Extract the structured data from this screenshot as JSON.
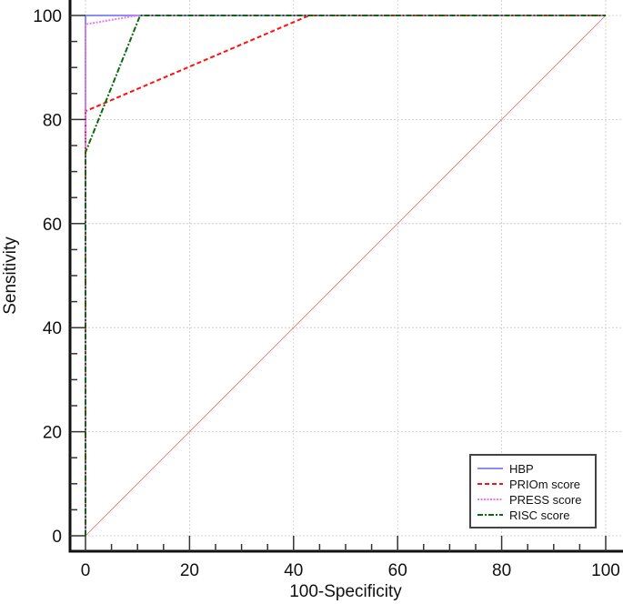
{
  "chart_data": {
    "type": "line",
    "title": "",
    "xlabel": "100-Specificity",
    "ylabel": "Sensitivity",
    "xlim": [
      0,
      100
    ],
    "ylim": [
      0,
      100
    ],
    "xticks": [
      0,
      20,
      40,
      60,
      80,
      100
    ],
    "yticks": [
      0,
      20,
      40,
      60,
      80,
      100
    ],
    "grid": true,
    "legend_position": "lower right",
    "series": [
      {
        "name": "HBP",
        "color": "#8c8cf5",
        "dash": "solid",
        "x": [
          0,
          0,
          100
        ],
        "y": [
          0,
          100,
          100
        ]
      },
      {
        "name": "PRIOm score",
        "color": "#ff1010",
        "dash": "dashed",
        "x": [
          0,
          0,
          43,
          100
        ],
        "y": [
          0,
          81.6,
          100,
          100
        ]
      },
      {
        "name": "PRESS score",
        "color": "#ee77ee",
        "dash": "dotted",
        "x": [
          0,
          0,
          10,
          100
        ],
        "y": [
          0,
          98.3,
          100,
          100
        ]
      },
      {
        "name": "RISC score",
        "color": "#0a6a0a",
        "dash": "dashdot",
        "x": [
          0,
          0,
          10.5,
          100
        ],
        "y": [
          0,
          73.7,
          100,
          100
        ]
      }
    ],
    "reference_line": {
      "name": "diagonal",
      "color": "#e07070",
      "x": [
        0,
        100
      ],
      "y": [
        0,
        100
      ]
    }
  }
}
